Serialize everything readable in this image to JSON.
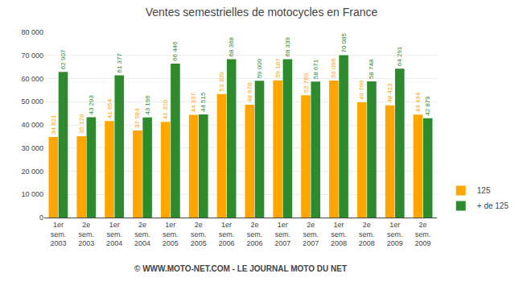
{
  "chart_data": {
    "type": "bar",
    "title": "Ventes semestrielles de motocycles en France",
    "categories": [
      "1er\nsem.\n2003",
      "2e\nsem.\n2003",
      "1er\nsem.\n2004",
      "2e\nsem.\n2004",
      "1er\nsem.\n2005",
      "2e\nsem.\n2005",
      "1er\nsem.\n2006",
      "2e\nsem.\n2006",
      "1er\nsem.\n2007",
      "2e\nsem.\n2007",
      "1er\nsem.\n2008",
      "2e\nsem.\n2008",
      "1er\nsem.\n2009",
      "2e\nsem.\n2009"
    ],
    "series": [
      {
        "name": "125",
        "color": "#FFA500",
        "values": [
          34821,
          35128,
          41654,
          37584,
          41320,
          44337,
          53309,
          48678,
          59187,
          52769,
          59096,
          49766,
          48413,
          44434
        ],
        "value_labels": [
          "34 821",
          "35 128",
          "41 654",
          "37 584",
          "41 320",
          "44 337",
          "53 309",
          "48 678",
          "59 187",
          "52 769",
          "59 096",
          "49 766",
          "48 413",
          "44 434"
        ]
      },
      {
        "name": "+ de 125",
        "color": "#2D8A2D",
        "values": [
          62907,
          43293,
          61377,
          43196,
          66446,
          44515,
          68368,
          59009,
          68339,
          58671,
          70085,
          58748,
          64291,
          42879
        ],
        "value_labels": [
          "62 907",
          "43 293",
          "61 377",
          "43 196",
          "66 446",
          "44 515",
          "68 368",
          "59 009",
          "68 339",
          "58 671",
          "70 085",
          "58 748",
          "64 291",
          "42 879"
        ]
      }
    ],
    "ylim": [
      0,
      80000
    ],
    "yticks": [
      0,
      {
        "value": 10000,
        "label": "10 000"
      },
      {
        "value": 20000,
        "label": "20 000"
      },
      {
        "value": 30000,
        "label": "30 000"
      },
      {
        "value": 40000,
        "label": "40 000"
      },
      {
        "value": 50000,
        "label": "50 000"
      },
      {
        "value": 60000,
        "label": "60 000"
      },
      {
        "value": 70000,
        "label": "70 000"
      },
      {
        "value": 80000,
        "label": "80 000"
      }
    ],
    "grid": true,
    "legend": "lower right",
    "data_labels": true,
    "annotations": [
      "© WWW.MOTO-NET.COM - LE JOURNAL MOTO DU NET"
    ]
  }
}
